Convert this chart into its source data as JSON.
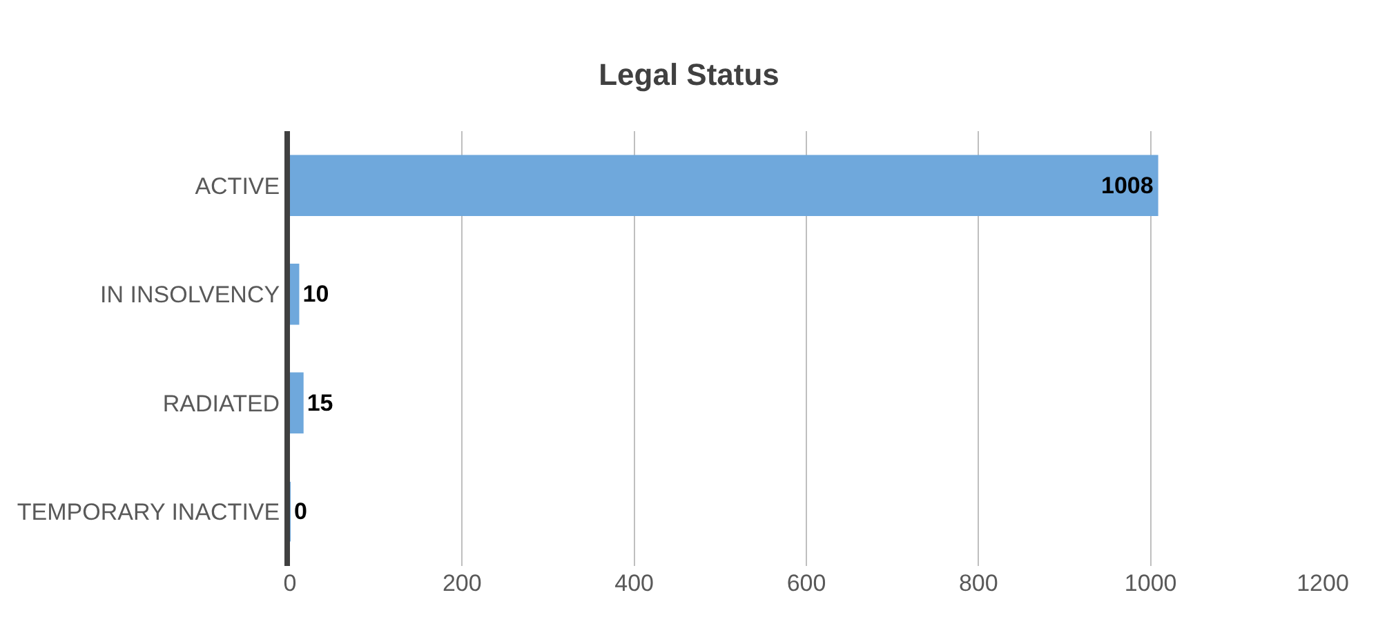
{
  "chart_data": {
    "type": "bar",
    "orientation": "horizontal",
    "title": "Legal Status",
    "categories": [
      "ACTIVE",
      "IN INSOLVENCY",
      "RADIATED",
      "TEMPORARY INACTIVE"
    ],
    "values": [
      1008,
      10,
      15,
      0
    ],
    "color": "#6fa8dc",
    "xlim": [
      0,
      1200
    ],
    "xticks": [
      0,
      200,
      400,
      600,
      800,
      1000,
      1200
    ],
    "grid": "x",
    "data_labels": true
  }
}
